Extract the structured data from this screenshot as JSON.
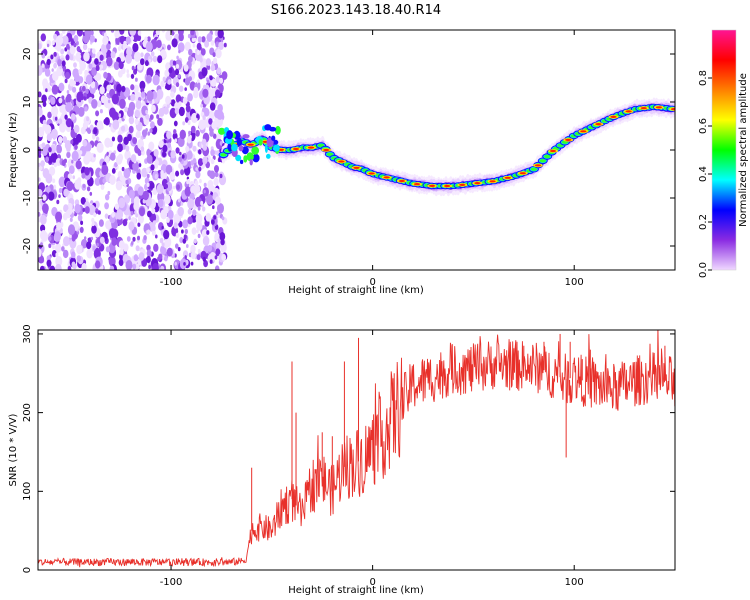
{
  "chart_data": [
    {
      "type": "heatmap",
      "title": "S166.2023.143.18.40.R14",
      "xlabel": "Height of straight line (km)",
      "ylabel": "Frequency (Hz)",
      "xlim": [
        -166,
        150
      ],
      "ylim": [
        -25,
        25
      ],
      "xticks": [
        -100,
        0,
        100
      ],
      "yticks": [
        -20,
        -10,
        0,
        10,
        20
      ],
      "colorbar": {
        "label": "Normalized spectral amplitude",
        "range": [
          0,
          1
        ],
        "ticks": [
          "0.0",
          "0.2",
          "0.4",
          "0.6",
          "0.8"
        ],
        "colormap": [
          "#f0d8ff",
          "#8a2be2",
          "#0000ff",
          "#00ffff",
          "#00ff00",
          "#ffff00",
          "#ff8000",
          "#ff0000",
          "#ff1493"
        ]
      },
      "noise_region_x": [
        -166,
        -73
      ],
      "ridge": {
        "x": [
          -74,
          -70,
          -65,
          -60,
          -55,
          -50,
          -45,
          -40,
          -35,
          -30,
          -25,
          -20,
          -15,
          -10,
          -5,
          0,
          10,
          20,
          30,
          40,
          50,
          60,
          70,
          80,
          85,
          90,
          95,
          100,
          110,
          120,
          130,
          140,
          150
        ],
        "y": [
          -1.0,
          0.5,
          2.0,
          1.0,
          2.5,
          0.5,
          0.0,
          0.0,
          0.5,
          0.5,
          1.0,
          -1.5,
          -2.5,
          -3.5,
          -4.0,
          -5.0,
          -6.0,
          -7.0,
          -7.5,
          -7.5,
          -7.0,
          -6.5,
          -5.5,
          -4.0,
          -2.0,
          0.0,
          1.5,
          3.0,
          5.0,
          7.0,
          8.5,
          9.0,
          8.5
        ]
      }
    },
    {
      "type": "line",
      "xlabel": "Height of straight line (km)",
      "ylabel": "SNR (10 * V/V)",
      "xlim": [
        -166,
        150
      ],
      "ylim": [
        0,
        305
      ],
      "xticks": [
        -100,
        0,
        100
      ],
      "yticks": [
        0,
        100,
        200,
        300
      ],
      "color": "#e8302a",
      "envelope": {
        "x": [
          -166,
          -130,
          -100,
          -70,
          -63,
          -60,
          -55,
          -50,
          -45,
          -40,
          -35,
          -30,
          -25,
          -20,
          -15,
          -10,
          -5,
          0,
          5,
          10,
          15,
          20,
          30,
          40,
          50,
          60,
          70,
          80,
          90,
          95,
          100,
          110,
          120,
          130,
          140,
          150
        ],
        "y": [
          10,
          10,
          10,
          10,
          12,
          50,
          55,
          50,
          80,
          90,
          70,
          110,
          115,
          100,
          130,
          135,
          140,
          155,
          170,
          195,
          215,
          235,
          245,
          255,
          255,
          262,
          260,
          258,
          250,
          242,
          245,
          235,
          230,
          240,
          245,
          238
        ]
      },
      "spikes": [
        {
          "x": -60,
          "y": 130
        },
        {
          "x": -40,
          "y": 265
        },
        {
          "x": -38,
          "y": 200
        },
        {
          "x": -25,
          "y": 175
        },
        {
          "x": -20,
          "y": 170
        },
        {
          "x": -14,
          "y": 265
        },
        {
          "x": -7,
          "y": 295
        },
        {
          "x": 75,
          "y": 285
        },
        {
          "x": 85,
          "y": 290
        },
        {
          "x": 93,
          "y": 300
        },
        {
          "x": 96,
          "y": 143
        },
        {
          "x": 98,
          "y": 290
        },
        {
          "x": 104,
          "y": 268
        },
        {
          "x": 108,
          "y": 280
        },
        {
          "x": 145,
          "y": 285
        }
      ]
    }
  ]
}
